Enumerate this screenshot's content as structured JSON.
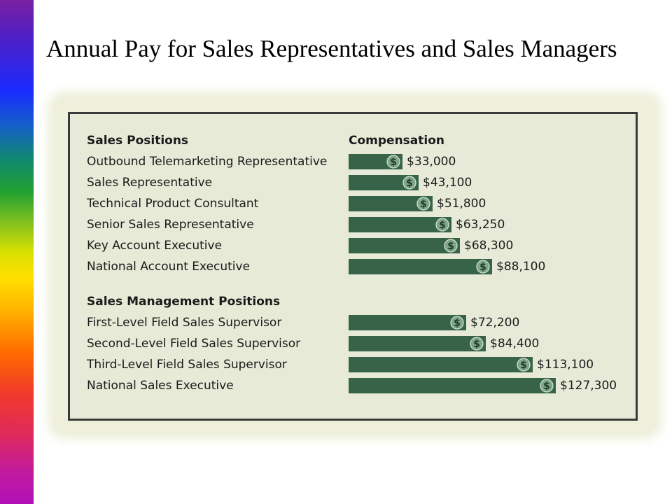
{
  "title": "Annual Pay for Sales Representatives and Sales Managers",
  "chart_data": {
    "type": "bar",
    "orientation": "horizontal",
    "headers": {
      "category": "Sales Positions",
      "value": "Compensation"
    },
    "groups": [
      {
        "name": "Sales Positions",
        "items": [
          {
            "label": "Outbound Telemarketing Representative",
            "value": 33000,
            "display": "$33,000"
          },
          {
            "label": "Sales Representative",
            "value": 43100,
            "display": "$43,100"
          },
          {
            "label": "Technical Product Consultant",
            "value": 51800,
            "display": "$51,800"
          },
          {
            "label": "Senior Sales Representative",
            "value": 63250,
            "display": "$63,250"
          },
          {
            "label": "Key Account Executive",
            "value": 68300,
            "display": "$68,300"
          },
          {
            "label": "National Account Executive",
            "value": 88100,
            "display": "$88,100"
          }
        ]
      },
      {
        "name": "Sales Management Positions",
        "items": [
          {
            "label": "First-Level Field Sales Supervisor",
            "value": 72200,
            "display": "$72,200"
          },
          {
            "label": "Second-Level Field Sales Supervisor",
            "value": 84400,
            "display": "$84,400"
          },
          {
            "label": "Third-Level Field Sales Supervisor",
            "value": 113100,
            "display": "$113,100"
          },
          {
            "label": "National Sales Executive",
            "value": 127300,
            "display": "$127,300"
          }
        ]
      }
    ],
    "bar_icon": "dollar-icon",
    "colors": {
      "bar": "#376448",
      "panel": "#e8ead8",
      "border": "#3a3a3a",
      "coin": "#7fa688"
    }
  }
}
